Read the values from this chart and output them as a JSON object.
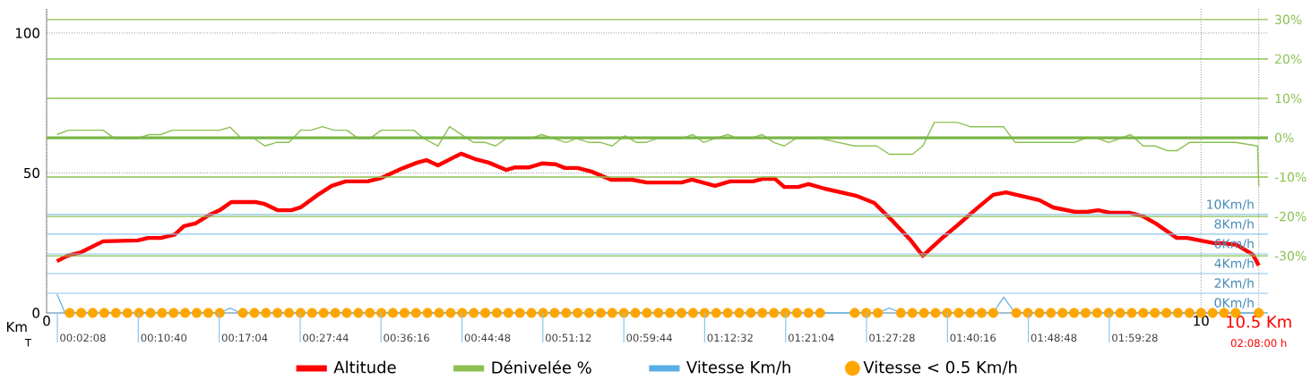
{
  "chart_data": {
    "type": "line",
    "xlabel": "Km",
    "annotations": [
      "T",
      "00:02:08",
      "00:10:40",
      "00:17:04",
      "00:27:44",
      "00:36:16",
      "00:44:48",
      "00:51:12",
      "00:59:44",
      "01:12:32",
      "01:21:04",
      "01:27:28",
      "01:40:16",
      "01:48:48",
      "01:59:28",
      "02:08:00 h"
    ],
    "xlim": [
      0,
      10.58
    ],
    "xticks": [
      0,
      10,
      {
        "value": 10.5,
        "label": "10.5 Km"
      }
    ],
    "ylim": [
      0,
      108.6
    ],
    "yticks": [
      0,
      50,
      100
    ],
    "y2lim": [
      -44.5,
      32.7
    ],
    "y2ticks": [
      {
        "value": -30,
        "label": "-30%"
      },
      {
        "value": -20,
        "label": "-20%"
      },
      {
        "value": -10,
        "label": "-10%"
      },
      {
        "value": 0,
        "label": "0%"
      },
      {
        "value": 10,
        "label": "10%"
      },
      {
        "value": 20,
        "label": "20%"
      },
      {
        "value": 30,
        "label": "30%"
      }
    ],
    "y3lim": [
      0,
      30.9
    ],
    "y3ticks": [
      {
        "value": 0,
        "label": "0Km/h"
      },
      {
        "value": 2,
        "label": "2Km/h"
      },
      {
        "value": 4,
        "label": "4Km/h"
      },
      {
        "value": 6,
        "label": "6Km/h"
      },
      {
        "value": 8,
        "label": "8Km/h"
      },
      {
        "value": 10,
        "label": "10Km/h"
      }
    ],
    "grid": true,
    "legend": "bottom",
    "ref_lines": [
      {
        "axis": "y2",
        "value": 0,
        "color": "#7ab648"
      }
    ],
    "series": [
      {
        "name": "Altitude",
        "color": "#ff0000",
        "axis": "y",
        "x": [
          0.09,
          0.18,
          0.3,
          0.49,
          0.79,
          0.88,
          0.99,
          1.11,
          1.19,
          1.29,
          1.4,
          1.5,
          1.6,
          1.81,
          1.89,
          2.0,
          2.12,
          2.2,
          2.35,
          2.47,
          2.59,
          2.78,
          2.9,
          3.09,
          3.21,
          3.29,
          3.39,
          3.59,
          3.71,
          3.83,
          3.98,
          4.06,
          4.18,
          4.29,
          4.41,
          4.49,
          4.6,
          4.72,
          4.89,
          5.07,
          5.2,
          5.5,
          5.59,
          5.79,
          5.92,
          6.12,
          6.2,
          6.31,
          6.39,
          6.51,
          6.6,
          6.74,
          7.01,
          7.17,
          7.32,
          7.48,
          7.59,
          7.75,
          7.89,
          8.06,
          8.2,
          8.31,
          8.6,
          8.72,
          8.91,
          9.01,
          9.11,
          9.21,
          9.38,
          9.5,
          9.61,
          9.79,
          9.88,
          10.12,
          10.19,
          10.31,
          10.45,
          10.5
        ],
        "values": [
          18.5,
          20.4,
          21.7,
          25.6,
          25.9,
          26.8,
          26.8,
          28,
          31,
          32,
          34.8,
          36.7,
          39.6,
          39.6,
          38.9,
          36.7,
          36.7,
          37.7,
          42.2,
          45.4,
          47,
          47,
          48.2,
          51.8,
          53.7,
          54.6,
          52.7,
          56.9,
          55,
          53.7,
          51.1,
          52,
          52,
          53.4,
          53.1,
          51.8,
          51.8,
          50.5,
          47.6,
          47.6,
          46.6,
          46.6,
          47.6,
          45.4,
          47,
          47,
          47.9,
          47.9,
          45,
          45,
          46,
          44.4,
          41.9,
          39.3,
          33.2,
          26.2,
          20.4,
          26.5,
          31.3,
          37.4,
          42.2,
          43.1,
          40.3,
          37.7,
          36.1,
          36.1,
          36.7,
          35.8,
          35.8,
          34.5,
          31.9,
          26.8,
          26.8,
          24.9,
          24.9,
          24.3,
          20.8,
          16.9
        ]
      },
      {
        "name": "Dénivelée %",
        "color": "#8cc152",
        "axis": "y2",
        "x": [
          0.09,
          0.19,
          0.49,
          0.59,
          0.78,
          0.89,
          0.99,
          1.09,
          1.5,
          1.59,
          1.68,
          1.79,
          1.89,
          1.99,
          2.1,
          2.2,
          2.29,
          2.39,
          2.49,
          2.6,
          2.7,
          2.8,
          2.9,
          3.18,
          3.27,
          3.39,
          3.49,
          3.61,
          3.7,
          3.8,
          3.89,
          3.98,
          4.19,
          4.29,
          4.39,
          4.5,
          4.59,
          4.7,
          4.8,
          4.9,
          5.01,
          5.11,
          5.19,
          5.29,
          5.5,
          5.6,
          5.69,
          5.79,
          5.9,
          5.99,
          6.09,
          6.2,
          6.3,
          6.39,
          6.49,
          6.7,
          7.0,
          7.19,
          7.3,
          7.5,
          7.59,
          7.69,
          7.89,
          8.0,
          8.29,
          8.39,
          8.9,
          9.01,
          9.09,
          9.2,
          9.39,
          9.5,
          9.6,
          9.71,
          9.79,
          9.9,
          10.3,
          10.49,
          10.5
        ],
        "values": [
          0.8,
          1.9,
          1.9,
          -0.2,
          -0.2,
          0.8,
          0.8,
          1.9,
          1.9,
          2.7,
          0,
          0,
          -2.1,
          -1.2,
          -1.2,
          1.9,
          1.9,
          2.8,
          1.9,
          1.9,
          -0.2,
          -0.2,
          1.9,
          1.9,
          -0.2,
          -2.1,
          2.8,
          0.5,
          -1.2,
          -1.2,
          -2.1,
          -0.2,
          -0.2,
          0.8,
          -0.2,
          -1.2,
          -0.2,
          -1.2,
          -1.2,
          -2.1,
          0.5,
          -1.2,
          -1.2,
          -0.2,
          -0.2,
          0.8,
          -1.2,
          -0.2,
          0.8,
          -0.2,
          -0.2,
          0.8,
          -1.2,
          -2.1,
          -0.2,
          -0.2,
          -2.1,
          -2.1,
          -4.2,
          -4.2,
          -2.1,
          3.9,
          3.9,
          2.8,
          2.8,
          -1.2,
          -1.2,
          0,
          0,
          -1.2,
          0.8,
          -2.1,
          -2.1,
          -3.3,
          -3.3,
          -1.2,
          -1.2,
          -2.1,
          -12.3
        ]
      },
      {
        "name": "Vitesse Km/h",
        "color": "#5aaee6",
        "axis": "y3",
        "x": [
          0.09,
          0.16,
          1.5,
          1.59,
          1.68,
          7.2,
          7.3,
          7.4,
          8.2,
          8.29,
          8.39,
          10.5
        ],
        "values": [
          1.9,
          0,
          0,
          0.5,
          0,
          0,
          0.5,
          0,
          0,
          1.6,
          0,
          0
        ]
      },
      {
        "name": "Vitesse < 0.5 Km/h",
        "color": "#ffa500",
        "type": "scatter",
        "axis": "y3",
        "x": [
          0.2,
          0.3,
          0.4,
          0.5,
          0.6,
          0.7,
          0.8,
          0.9,
          1.0,
          1.1,
          1.2,
          1.3,
          1.4,
          1.5,
          1.7,
          1.8,
          1.9,
          2.0,
          2.1,
          2.2,
          2.3,
          2.4,
          2.5,
          2.6,
          2.7,
          2.8,
          2.9,
          3.0,
          3.1,
          3.2,
          3.3,
          3.4,
          3.5,
          3.6,
          3.7,
          3.8,
          3.9,
          4.0,
          4.1,
          4.2,
          4.3,
          4.4,
          4.5,
          4.6,
          4.7,
          4.8,
          4.9,
          5.0,
          5.1,
          5.2,
          5.3,
          5.4,
          5.5,
          5.6,
          5.7,
          5.8,
          5.9,
          6.0,
          6.1,
          6.2,
          6.3,
          6.4,
          6.5,
          6.6,
          6.7,
          7.0,
          7.1,
          7.2,
          7.4,
          7.5,
          7.6,
          7.7,
          7.8,
          7.9,
          8.0,
          8.1,
          8.2,
          8.4,
          8.5,
          8.6,
          8.7,
          8.8,
          8.9,
          9.0,
          9.1,
          9.2,
          9.3,
          9.4,
          9.5,
          9.6,
          9.7,
          9.8,
          9.9,
          10.0,
          10.1,
          10.2,
          10.3,
          10.5
        ],
        "values": [
          0,
          0,
          0,
          0,
          0,
          0,
          0,
          0,
          0,
          0,
          0,
          0,
          0,
          0,
          0,
          0,
          0,
          0,
          0,
          0,
          0,
          0,
          0,
          0,
          0,
          0,
          0,
          0,
          0,
          0,
          0,
          0,
          0,
          0,
          0,
          0,
          0,
          0,
          0,
          0,
          0,
          0,
          0,
          0,
          0,
          0,
          0,
          0,
          0,
          0,
          0,
          0,
          0,
          0,
          0,
          0,
          0,
          0,
          0,
          0,
          0,
          0,
          0,
          0,
          0,
          0,
          0,
          0,
          0,
          0,
          0,
          0,
          0,
          0,
          0,
          0,
          0,
          0,
          0,
          0,
          0,
          0,
          0,
          0,
          0,
          0,
          0,
          0,
          0,
          0,
          0,
          0,
          0,
          0,
          0,
          0,
          0,
          0
        ]
      }
    ]
  }
}
